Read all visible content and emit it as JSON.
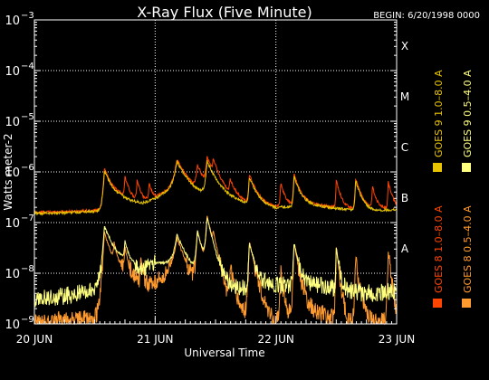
{
  "chart_data": {
    "type": "line",
    "title": "X-Ray Flux (Five Minute)",
    "begin_label": "BEGIN: 6/20/1998 0000",
    "xlabel": "Universal Time",
    "ylabel": "Watts meter-2",
    "y_scale": "log",
    "ylim": [
      1e-09,
      0.001
    ],
    "y_ticks": [
      {
        "exp": -9,
        "label_base": "10",
        "label_exp": "−9"
      },
      {
        "exp": -8,
        "label_base": "10",
        "label_exp": "−8"
      },
      {
        "exp": -7,
        "label_base": "10",
        "label_exp": "−7"
      },
      {
        "exp": -6,
        "label_base": "10",
        "label_exp": "−6"
      },
      {
        "exp": -5,
        "label_base": "10",
        "label_exp": "−5"
      },
      {
        "exp": -4,
        "label_base": "10",
        "label_exp": "−4"
      },
      {
        "exp": -3,
        "label_base": "10",
        "label_exp": "−3"
      }
    ],
    "x_ticks": [
      "20 JUN",
      "21 JUN",
      "22 JUN",
      "23 JUN"
    ],
    "xlim_days": [
      0,
      3
    ],
    "flare_classes": [
      {
        "label": "A",
        "exp": -8
      },
      {
        "label": "B",
        "exp": -7
      },
      {
        "label": "C",
        "exp": -6
      },
      {
        "label": "M",
        "exp": -5
      },
      {
        "label": "X",
        "exp": -4
      }
    ],
    "grid": true,
    "legend_placement": "right",
    "series": [
      {
        "name": "GOES 8 1.0–8.0 A",
        "color": "#ff4500",
        "baseline": [
          [
            0,
            -6.8
          ],
          [
            0.3,
            -6.78
          ],
          [
            0.6,
            -6.75
          ],
          [
            0.7,
            -6.55
          ],
          [
            0.9,
            -6.6
          ],
          [
            1.0,
            -6.5
          ],
          [
            1.15,
            -6.3
          ],
          [
            1.3,
            -6.45
          ],
          [
            1.55,
            -6.45
          ],
          [
            1.75,
            -6.6
          ],
          [
            2.0,
            -6.7
          ],
          [
            2.25,
            -6.62
          ],
          [
            2.5,
            -6.7
          ],
          [
            2.8,
            -6.75
          ],
          [
            3.0,
            -6.72
          ]
        ],
        "peaks": [
          [
            0.58,
            -6.0,
            0.01,
            0.06
          ],
          [
            0.75,
            -6.3,
            0.005,
            0.03
          ],
          [
            0.85,
            -6.4,
            0.005,
            0.03
          ],
          [
            0.95,
            -6.45,
            0.004,
            0.02
          ],
          [
            1.18,
            -5.9,
            0.02,
            0.08
          ],
          [
            1.35,
            -6.05,
            0.01,
            0.05
          ],
          [
            1.43,
            -5.85,
            0.01,
            0.06
          ],
          [
            1.48,
            -6.1,
            0.005,
            0.04
          ],
          [
            1.62,
            -6.5,
            0.005,
            0.04
          ],
          [
            1.78,
            -6.2,
            0.006,
            0.05
          ],
          [
            2.04,
            -6.4,
            0.005,
            0.03
          ],
          [
            2.15,
            -6.15,
            0.005,
            0.04
          ],
          [
            2.5,
            -6.3,
            0.004,
            0.03
          ],
          [
            2.66,
            -6.25,
            0.005,
            0.04
          ],
          [
            2.8,
            -6.5,
            0.005,
            0.03
          ],
          [
            2.93,
            -6.35,
            0.004,
            0.03
          ]
        ]
      },
      {
        "name": "GOES 8 0.5–4.0 A",
        "color": "#ff9a2e",
        "baseline": [
          [
            0,
            -9.0
          ],
          [
            0.25,
            -8.9
          ],
          [
            0.5,
            -8.9
          ],
          [
            0.58,
            -8.5
          ],
          [
            0.62,
            -8.0
          ],
          [
            0.75,
            -7.9
          ],
          [
            0.9,
            -8.3
          ],
          [
            1.0,
            -8.2
          ],
          [
            1.15,
            -7.9
          ],
          [
            1.3,
            -8.4
          ],
          [
            1.4,
            -8.6
          ],
          [
            1.5,
            -8.8
          ],
          [
            1.75,
            -8.8
          ],
          [
            2.0,
            -9.0
          ],
          [
            2.25,
            -8.7
          ],
          [
            2.5,
            -8.9
          ],
          [
            2.75,
            -9.0
          ],
          [
            3.0,
            -8.9
          ]
        ],
        "peaks": [
          [
            0.58,
            -7.2,
            0.01,
            0.04
          ],
          [
            0.66,
            -7.6,
            0.005,
            0.02
          ],
          [
            0.75,
            -7.7,
            0.005,
            0.02
          ],
          [
            0.88,
            -7.8,
            0.005,
            0.02
          ],
          [
            1.18,
            -7.4,
            0.02,
            0.06
          ],
          [
            1.35,
            -7.2,
            0.01,
            0.04
          ],
          [
            1.43,
            -6.9,
            0.01,
            0.04
          ],
          [
            1.48,
            -7.5,
            0.005,
            0.03
          ],
          [
            1.62,
            -8.0,
            0.005,
            0.03
          ],
          [
            1.78,
            -7.4,
            0.006,
            0.04
          ],
          [
            2.04,
            -8.0,
            0.005,
            0.02
          ],
          [
            2.15,
            -7.4,
            0.005,
            0.03
          ],
          [
            2.5,
            -7.5,
            0.004,
            0.02
          ],
          [
            2.66,
            -7.8,
            0.005,
            0.03
          ],
          [
            2.93,
            -7.6,
            0.004,
            0.02
          ]
        ]
      },
      {
        "name": "GOES 9 1.0–8.0 A",
        "color": "#e8c400",
        "baseline": [
          [
            0,
            -6.82
          ],
          [
            0.3,
            -6.8
          ],
          [
            0.6,
            -6.77
          ],
          [
            0.7,
            -6.57
          ],
          [
            0.9,
            -6.62
          ],
          [
            1.0,
            -6.52
          ],
          [
            1.15,
            -6.32
          ],
          [
            1.3,
            -6.47
          ],
          [
            1.55,
            -6.47
          ],
          [
            1.75,
            -6.62
          ],
          [
            2.0,
            -6.72
          ],
          [
            2.25,
            -6.64
          ],
          [
            2.5,
            -6.72
          ],
          [
            2.8,
            -6.77
          ],
          [
            3.0,
            -6.74
          ]
        ],
        "peaks": [
          [
            0.58,
            -6.05,
            0.01,
            0.06
          ],
          [
            1.18,
            -5.95,
            0.02,
            0.08
          ],
          [
            1.43,
            -5.9,
            0.01,
            0.06
          ],
          [
            1.78,
            -6.25,
            0.006,
            0.05
          ],
          [
            2.15,
            -6.2,
            0.005,
            0.04
          ],
          [
            2.66,
            -6.3,
            0.005,
            0.04
          ]
        ]
      },
      {
        "name": "GOES 9 0.5–4.0 A",
        "color": "#ffff80",
        "baseline": [
          [
            0,
            -8.5
          ],
          [
            0.25,
            -8.45
          ],
          [
            0.5,
            -8.3
          ],
          [
            0.58,
            -7.8
          ],
          [
            0.62,
            -7.6
          ],
          [
            0.75,
            -7.7
          ],
          [
            0.9,
            -7.9
          ],
          [
            1.0,
            -7.8
          ],
          [
            1.15,
            -7.8
          ],
          [
            1.3,
            -8.0
          ],
          [
            1.4,
            -8.1
          ],
          [
            1.5,
            -8.2
          ],
          [
            1.75,
            -8.3
          ],
          [
            2.0,
            -8.25
          ],
          [
            2.25,
            -8.2
          ],
          [
            2.5,
            -8.3
          ],
          [
            2.75,
            -8.4
          ],
          [
            3.0,
            -8.35
          ]
        ],
        "peaks": [
          [
            0.58,
            -7.15,
            0.01,
            0.04
          ],
          [
            0.75,
            -7.6,
            0.005,
            0.02
          ],
          [
            1.18,
            -7.35,
            0.02,
            0.06
          ],
          [
            1.35,
            -7.25,
            0.01,
            0.04
          ],
          [
            1.43,
            -6.95,
            0.01,
            0.04
          ],
          [
            1.78,
            -7.45,
            0.006,
            0.04
          ],
          [
            2.15,
            -7.45,
            0.005,
            0.03
          ],
          [
            2.5,
            -7.55,
            0.004,
            0.02
          ]
        ]
      }
    ]
  }
}
